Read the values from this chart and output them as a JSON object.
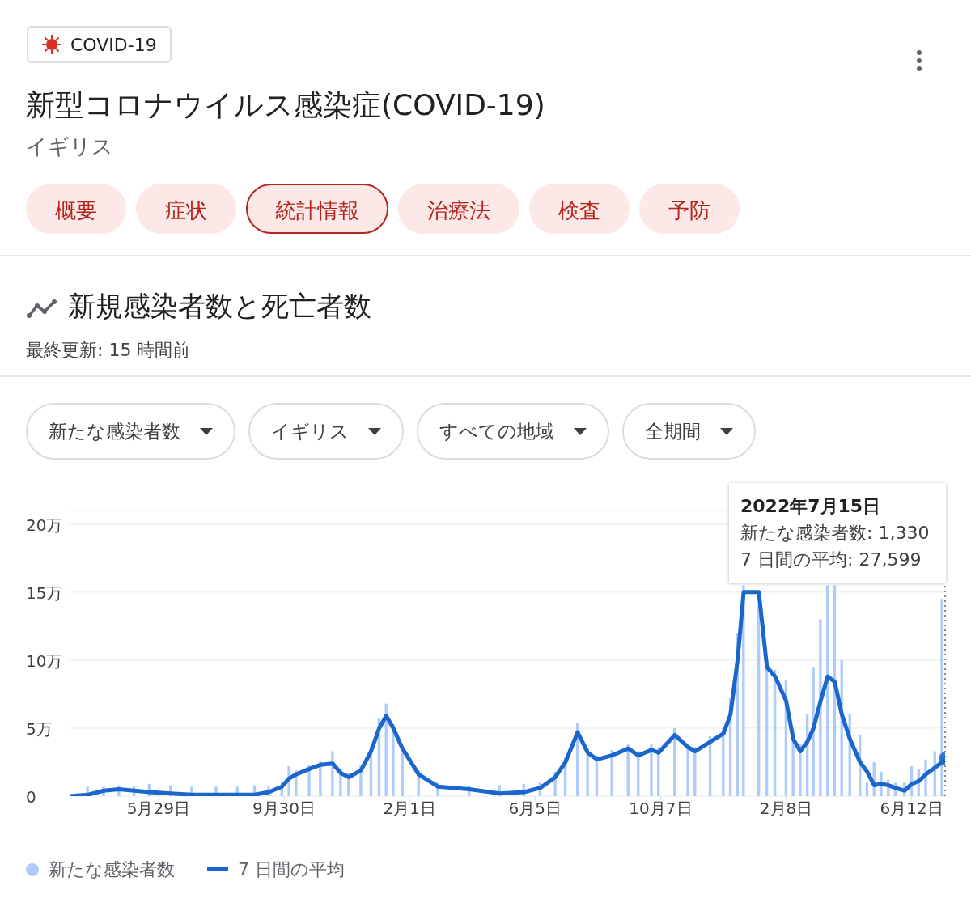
{
  "chart_data": {
    "type": "bar",
    "title": "新型コロナウイルス感染症(COVID-19)",
    "subtitle": "イギリス",
    "annotations": [
      "COVID-19",
      "概要",
      "症状",
      "統計情報",
      "治療法",
      "検査",
      "予防",
      "新規感染者数と死亡者数",
      "最終更新: 15 時間前",
      "新たな感染者数",
      "イギリス",
      "すべての地域",
      "全期間",
      "2022年7月15日",
      "新たな感染者数: 1,330",
      "7 日間の平均: 27,599"
    ],
    "x": [
      "2020-03-03",
      "2020-03-20",
      "2020-04-05",
      "2020-04-20",
      "2020-05-05",
      "2020-05-20",
      "2020-06-10",
      "2020-07-01",
      "2020-07-25",
      "2020-08-15",
      "2020-09-01",
      "2020-09-15",
      "2020-09-28",
      "2020-10-05",
      "2020-10-12",
      "2020-10-25",
      "2020-11-05",
      "2020-11-17",
      "2020-11-25",
      "2020-12-03",
      "2020-12-15",
      "2020-12-25",
      "2021-01-02",
      "2021-01-09",
      "2021-01-16",
      "2021-01-25",
      "2021-02-10",
      "2021-03-01",
      "2021-04-01",
      "2021-05-01",
      "2021-05-25",
      "2021-06-10",
      "2021-06-25",
      "2021-07-05",
      "2021-07-17",
      "2021-07-27",
      "2021-08-05",
      "2021-08-20",
      "2021-09-05",
      "2021-09-15",
      "2021-09-28",
      "2021-10-05",
      "2021-10-21",
      "2021-11-03",
      "2021-11-10",
      "2021-11-25",
      "2021-12-08",
      "2021-12-15",
      "2021-12-22",
      "2021-12-28",
      "2022-01-12",
      "2022-01-20",
      "2022-01-28",
      "2022-02-08",
      "2022-02-15",
      "2022-02-22",
      "2022-03-01",
      "2022-03-07",
      "2022-03-14",
      "2022-03-21",
      "2022-03-28",
      "2022-04-04",
      "2022-04-12",
      "2022-04-22",
      "2022-04-29",
      "2022-05-06",
      "2022-05-13",
      "2022-05-20",
      "2022-05-27",
      "2022-06-05",
      "2022-06-12",
      "2022-06-19",
      "2022-06-26",
      "2022-07-05",
      "2022-07-12",
      "2022-07-15"
    ],
    "series": [
      {
        "name": "新たな感染者数",
        "color": "#aecbfa",
        "values": [
          0.0,
          0.7,
          0.7,
          0.8,
          0.7,
          0.9,
          0.8,
          0.7,
          0.7,
          0.7,
          0.8,
          0.7,
          1.0,
          2.2,
          1.9,
          2.3,
          2.6,
          3.3,
          2.0,
          1.7,
          2.3,
          3.7,
          5.7,
          6.8,
          5.3,
          3.2,
          1.9,
          1.0,
          0.8,
          0.8,
          0.9,
          1.0,
          1.8,
          2.9,
          5.4,
          3.5,
          3.0,
          3.4,
          3.8,
          3.3,
          3.8,
          3.6,
          5.0,
          3.9,
          3.6,
          4.4,
          5.0,
          7.2,
          12.0,
          15.5,
          14.0,
          10.1,
          9.3,
          8.5,
          4.9,
          3.8,
          6.0,
          9.5,
          13.0,
          15.5,
          15.5,
          10.0,
          6.0,
          4.5,
          1.0,
          2.5,
          1.8,
          1.2,
          1.0,
          1.0,
          2.2,
          2.0,
          2.7,
          3.3,
          14.5,
          0.13
        ]
      },
      {
        "name": "7 日間の平均",
        "type": "line",
        "color": "#1a66cc",
        "values": [
          0.0,
          0.1,
          0.4,
          0.5,
          0.4,
          0.3,
          0.2,
          0.1,
          0.1,
          0.1,
          0.1,
          0.3,
          0.7,
          1.3,
          1.6,
          2.0,
          2.3,
          2.4,
          1.7,
          1.4,
          1.9,
          3.3,
          5.0,
          5.9,
          5.0,
          3.5,
          1.6,
          0.7,
          0.5,
          0.2,
          0.3,
          0.6,
          1.4,
          2.5,
          4.7,
          3.2,
          2.7,
          3.0,
          3.5,
          3.0,
          3.4,
          3.2,
          4.5,
          3.6,
          3.3,
          4.0,
          4.6,
          6.0,
          10.0,
          15.0,
          15.0,
          9.5,
          8.8,
          7.0,
          4.2,
          3.3,
          4.0,
          5.0,
          7.0,
          8.8,
          8.4,
          6.0,
          4.2,
          2.5,
          1.8,
          0.8,
          0.9,
          0.8,
          0.6,
          0.4,
          0.9,
          1.1,
          1.6,
          2.1,
          2.5,
          2.76
        ]
      }
    ],
    "xlim": [
      "2020-03-03",
      "2022-07-15"
    ],
    "xticks": [
      {
        "value": "2020-05-29",
        "label": "5月29日"
      },
      {
        "value": "2020-09-30",
        "label": "9月30日"
      },
      {
        "value": "2021-02-01",
        "label": "2月1日"
      },
      {
        "value": "2021-06-05",
        "label": "6月5日"
      },
      {
        "value": "2021-10-07",
        "label": "10月7日"
      },
      {
        "value": "2022-02-08",
        "label": "2月8日"
      },
      {
        "value": "2022-06-12",
        "label": "6月12日"
      }
    ],
    "ylim": [
      0,
      21
    ],
    "yticks": [
      0,
      {
        "value": 5,
        "label": "5万"
      },
      {
        "value": 10,
        "label": "10万"
      },
      {
        "value": 15,
        "label": "15万"
      },
      {
        "value": 20,
        "label": "20万"
      }
    ],
    "ref_lines": [
      {
        "axis": "x",
        "value": "2022-07-15",
        "color": "#5f6368",
        "line_style": "dotted"
      }
    ],
    "grid": "y",
    "legend": "bottom",
    "marker": "none",
    "line_style": "solid"
  }
}
